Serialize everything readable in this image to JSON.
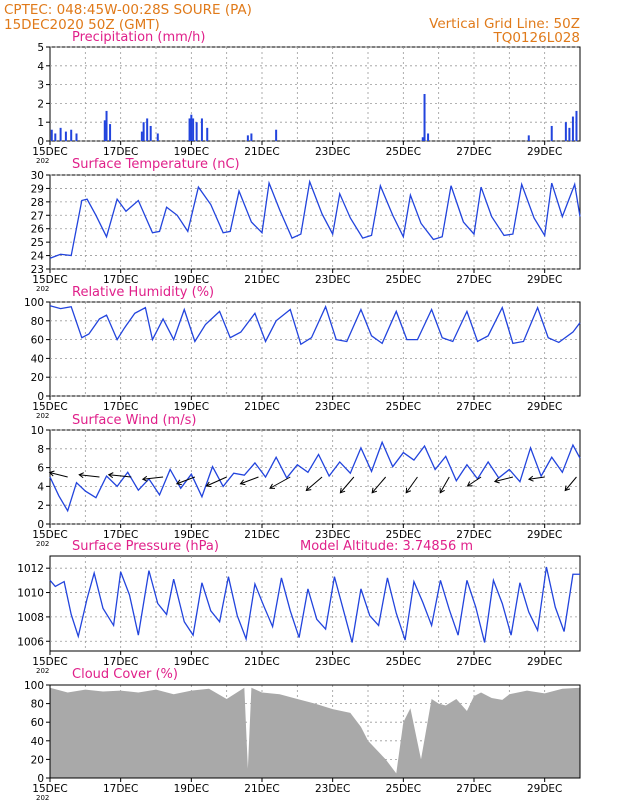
{
  "header": {
    "line1": "CPTEC:   048:45W-00:28S  SOURE (PA)",
    "line2": "15DEC2020 50Z (GMT)",
    "right1": "Vertical Grid Line: 50Z",
    "right2": "TQ0126L028"
  },
  "x_axis": {
    "ticks": [
      "15DEC",
      "17DEC",
      "19DEC",
      "21DEC",
      "23DEC",
      "25DEC",
      "27DEC",
      "29DEC"
    ],
    "first_sub": "202"
  },
  "model_altitude": "Model Altitude: 3.74856 m",
  "colors": {
    "line": "#2244dd",
    "bar": "#2244dd",
    "cloud": "#a9a9a9",
    "header": "#e07a1a",
    "title": "#e0208a"
  },
  "chart_data": [
    {
      "type": "bar",
      "title": "Precipitation (mm/h)",
      "ylim": [
        0,
        5
      ],
      "yticks": [
        0,
        1,
        2,
        3,
        4,
        5
      ],
      "x_unit": "days since 15DEC",
      "series": [
        {
          "x": [
            0.05,
            0.15,
            0.3,
            0.45,
            0.6,
            0.75,
            1.55,
            1.6,
            1.7,
            2.6,
            2.65,
            2.75,
            2.85,
            3.05,
            3.95,
            4.0,
            4.05,
            4.15,
            4.3,
            4.45,
            5.6,
            5.7,
            6.4,
            10.55,
            10.6,
            10.7,
            13.55,
            14.2,
            14.6,
            14.7,
            14.8,
            14.9
          ],
          "values": [
            0.6,
            0.4,
            0.7,
            0.5,
            0.6,
            0.4,
            1.1,
            1.6,
            0.9,
            0.5,
            1.0,
            1.2,
            0.8,
            0.4,
            1.2,
            1.4,
            1.2,
            1.0,
            1.2,
            0.7,
            0.3,
            0.4,
            0.6,
            0.2,
            2.5,
            0.4,
            0.3,
            0.8,
            1.0,
            0.7,
            1.3,
            1.6
          ]
        }
      ]
    },
    {
      "type": "line",
      "title": "Surface Temperature (nC)",
      "ylim": [
        23,
        30
      ],
      "yticks": [
        23,
        24,
        25,
        26,
        27,
        28,
        29,
        30
      ],
      "x_unit": "days since 15DEC",
      "series": [
        {
          "x": [
            0,
            0.3,
            0.6,
            0.9,
            1.05,
            1.3,
            1.6,
            1.9,
            2.15,
            2.5,
            2.9,
            3.1,
            3.3,
            3.6,
            3.9,
            4.2,
            4.55,
            4.9,
            5.1,
            5.35,
            5.7,
            6.0,
            6.2,
            6.5,
            6.85,
            7.1,
            7.35,
            7.7,
            8.0,
            8.2,
            8.5,
            8.85,
            9.1,
            9.35,
            9.7,
            10.0,
            10.2,
            10.5,
            10.85,
            11.1,
            11.35,
            11.7,
            12.0,
            12.2,
            12.5,
            12.85,
            13.1,
            13.35,
            13.7,
            14.0,
            14.2,
            14.5,
            14.85,
            15.0
          ],
          "values": [
            23.8,
            24.1,
            24.0,
            28.1,
            28.2,
            27.0,
            25.4,
            28.2,
            27.3,
            28.1,
            25.7,
            25.8,
            27.6,
            27.0,
            25.8,
            29.1,
            27.8,
            25.7,
            25.8,
            28.8,
            26.5,
            25.7,
            29.4,
            27.4,
            25.3,
            25.6,
            29.5,
            27.1,
            25.6,
            28.6,
            26.8,
            25.3,
            25.5,
            29.2,
            27.0,
            25.4,
            28.5,
            26.4,
            25.2,
            25.4,
            29.2,
            26.5,
            25.6,
            29.1,
            26.9,
            25.5,
            25.6,
            29.3,
            26.8,
            25.5,
            29.4,
            26.9,
            29.3,
            26.9
          ]
        }
      ]
    },
    {
      "type": "line",
      "title": "Relative Humidity (%)",
      "ylim": [
        0,
        100
      ],
      "yticks": [
        0,
        20,
        40,
        60,
        80,
        100
      ],
      "x_unit": "days since 15DEC",
      "series": [
        {
          "x": [
            0,
            0.3,
            0.6,
            0.9,
            1.1,
            1.4,
            1.6,
            1.9,
            2.1,
            2.4,
            2.7,
            2.9,
            3.2,
            3.5,
            3.8,
            4.1,
            4.4,
            4.8,
            5.1,
            5.4,
            5.8,
            6.1,
            6.4,
            6.8,
            7.1,
            7.4,
            7.8,
            8.1,
            8.4,
            8.8,
            9.1,
            9.4,
            9.8,
            10.1,
            10.4,
            10.8,
            11.1,
            11.4,
            11.8,
            12.1,
            12.4,
            12.8,
            13.1,
            13.4,
            13.8,
            14.1,
            14.4,
            14.8,
            15.0
          ],
          "values": [
            96,
            93,
            95,
            62,
            66,
            82,
            86,
            60,
            72,
            88,
            94,
            60,
            82,
            60,
            92,
            58,
            76,
            90,
            62,
            68,
            88,
            58,
            80,
            92,
            55,
            62,
            95,
            60,
            58,
            92,
            64,
            56,
            90,
            60,
            60,
            92,
            62,
            58,
            90,
            58,
            64,
            94,
            56,
            58,
            94,
            62,
            57,
            68,
            78
          ]
        }
      ]
    },
    {
      "type": "line",
      "title": "Surface Wind (m/s)",
      "ylim": [
        0,
        10
      ],
      "yticks": [
        0,
        2,
        4,
        6,
        8,
        10
      ],
      "x_unit": "days since 15DEC",
      "series": [
        {
          "x": [
            0,
            0.25,
            0.5,
            0.75,
            1.0,
            1.3,
            1.6,
            1.9,
            2.2,
            2.5,
            2.8,
            3.1,
            3.4,
            3.7,
            4.0,
            4.3,
            4.6,
            4.9,
            5.2,
            5.5,
            5.8,
            6.1,
            6.4,
            6.7,
            7.0,
            7.3,
            7.6,
            7.9,
            8.2,
            8.5,
            8.8,
            9.1,
            9.4,
            9.7,
            10.0,
            10.3,
            10.6,
            10.9,
            11.2,
            11.5,
            11.8,
            12.1,
            12.4,
            12.7,
            13.0,
            13.3,
            13.6,
            13.9,
            14.2,
            14.5,
            14.8,
            15.0
          ],
          "values": [
            5.0,
            3.0,
            1.4,
            4.4,
            3.5,
            2.8,
            5.1,
            4.0,
            5.5,
            3.6,
            4.8,
            3.1,
            5.8,
            3.8,
            5.3,
            2.9,
            6.1,
            4.0,
            5.4,
            5.2,
            6.5,
            5.0,
            7.1,
            4.9,
            6.3,
            5.5,
            7.4,
            5.1,
            6.6,
            5.4,
            8.1,
            5.6,
            8.7,
            6.1,
            7.6,
            6.8,
            8.3,
            5.8,
            7.2,
            4.6,
            6.3,
            4.8,
            6.6,
            4.9,
            5.8,
            4.5,
            8.1,
            5.1,
            7.1,
            5.5,
            8.4,
            7.0
          ]
        }
      ],
      "vector_x": [
        0.5,
        1.4,
        2.3,
        3.2,
        4.1,
        5.0,
        5.9,
        6.8,
        7.7,
        8.6,
        9.5,
        10.4,
        11.3,
        12.2,
        13.1,
        14.0,
        14.9
      ],
      "vector_u": [
        -4.0,
        -4.5,
        -5.0,
        -4.5,
        -4.0,
        -4.5,
        -4.0,
        -4.5,
        -3.5,
        -3.0,
        -3.0,
        -2.5,
        -2.0,
        -3.0,
        -4.0,
        -3.5,
        -2.5
      ],
      "vector_v": [
        1.0,
        0.5,
        0.5,
        -0.5,
        -1.5,
        -2.0,
        -1.5,
        -2.5,
        -3.0,
        -3.5,
        -3.5,
        -3.5,
        -3.5,
        -2.0,
        -1.0,
        -0.5,
        -3.0
      ]
    },
    {
      "type": "line",
      "title": "Surface Pressure (hPa)",
      "ylim": [
        1005.2,
        1013.0
      ],
      "yticks": [
        1006,
        1008,
        1010,
        1012
      ],
      "x_unit": "days since 15DEC",
      "series": [
        {
          "x": [
            0,
            0.15,
            0.4,
            0.6,
            0.8,
            1.05,
            1.25,
            1.5,
            1.8,
            2.0,
            2.25,
            2.5,
            2.8,
            3.05,
            3.3,
            3.5,
            3.8,
            4.05,
            4.3,
            4.55,
            4.8,
            5.05,
            5.3,
            5.55,
            5.8,
            6.05,
            6.3,
            6.55,
            6.8,
            7.05,
            7.3,
            7.55,
            7.8,
            8.05,
            8.3,
            8.55,
            8.8,
            9.05,
            9.3,
            9.55,
            9.8,
            10.05,
            10.3,
            10.55,
            10.8,
            11.05,
            11.3,
            11.55,
            11.8,
            12.05,
            12.3,
            12.55,
            12.8,
            13.05,
            13.3,
            13.55,
            13.8,
            14.05,
            14.3,
            14.55,
            14.8,
            15.0
          ],
          "values": [
            1011.0,
            1010.5,
            1010.9,
            1008.2,
            1006.4,
            1009.5,
            1011.6,
            1008.7,
            1007.3,
            1011.7,
            1009.8,
            1006.5,
            1011.8,
            1009.1,
            1008.2,
            1011.1,
            1007.6,
            1006.5,
            1010.8,
            1008.5,
            1007.6,
            1011.3,
            1008.1,
            1006.2,
            1010.7,
            1008.9,
            1007.2,
            1011.2,
            1008.5,
            1006.3,
            1010.3,
            1007.8,
            1007.0,
            1011.3,
            1008.6,
            1005.9,
            1010.3,
            1008.1,
            1007.3,
            1011.2,
            1008.3,
            1006.1,
            1010.9,
            1009.2,
            1007.3,
            1011.0,
            1008.6,
            1006.5,
            1011.0,
            1008.8,
            1005.9,
            1011.0,
            1009.1,
            1006.5,
            1010.8,
            1008.4,
            1006.9,
            1012.1,
            1008.8,
            1006.8,
            1011.5,
            1011.5
          ]
        }
      ]
    },
    {
      "type": "area",
      "title": "Cloud Cover (%)",
      "ylim": [
        0,
        100
      ],
      "yticks": [
        0,
        20,
        40,
        60,
        80,
        100
      ],
      "x_unit": "days since 15DEC",
      "series": [
        {
          "x": [
            0,
            0.5,
            1.0,
            1.5,
            2.0,
            2.5,
            3.0,
            3.5,
            4.0,
            4.5,
            5.0,
            5.5,
            5.6,
            5.7,
            6.0,
            6.5,
            7.0,
            7.5,
            8.0,
            8.5,
            8.8,
            9.0,
            9.5,
            9.8,
            10.0,
            10.2,
            10.5,
            10.8,
            11.0,
            11.2,
            11.5,
            11.8,
            12.0,
            12.2,
            12.5,
            12.8,
            13.0,
            13.5,
            14.0,
            14.5,
            15.0
          ],
          "values": [
            97,
            92,
            95,
            93,
            94,
            92,
            95,
            90,
            94,
            96,
            85,
            97,
            10,
            97,
            92,
            90,
            85,
            80,
            74,
            70,
            55,
            40,
            20,
            5,
            60,
            75,
            20,
            85,
            80,
            78,
            85,
            72,
            88,
            92,
            86,
            84,
            90,
            94,
            91,
            96,
            97
          ]
        }
      ]
    }
  ]
}
